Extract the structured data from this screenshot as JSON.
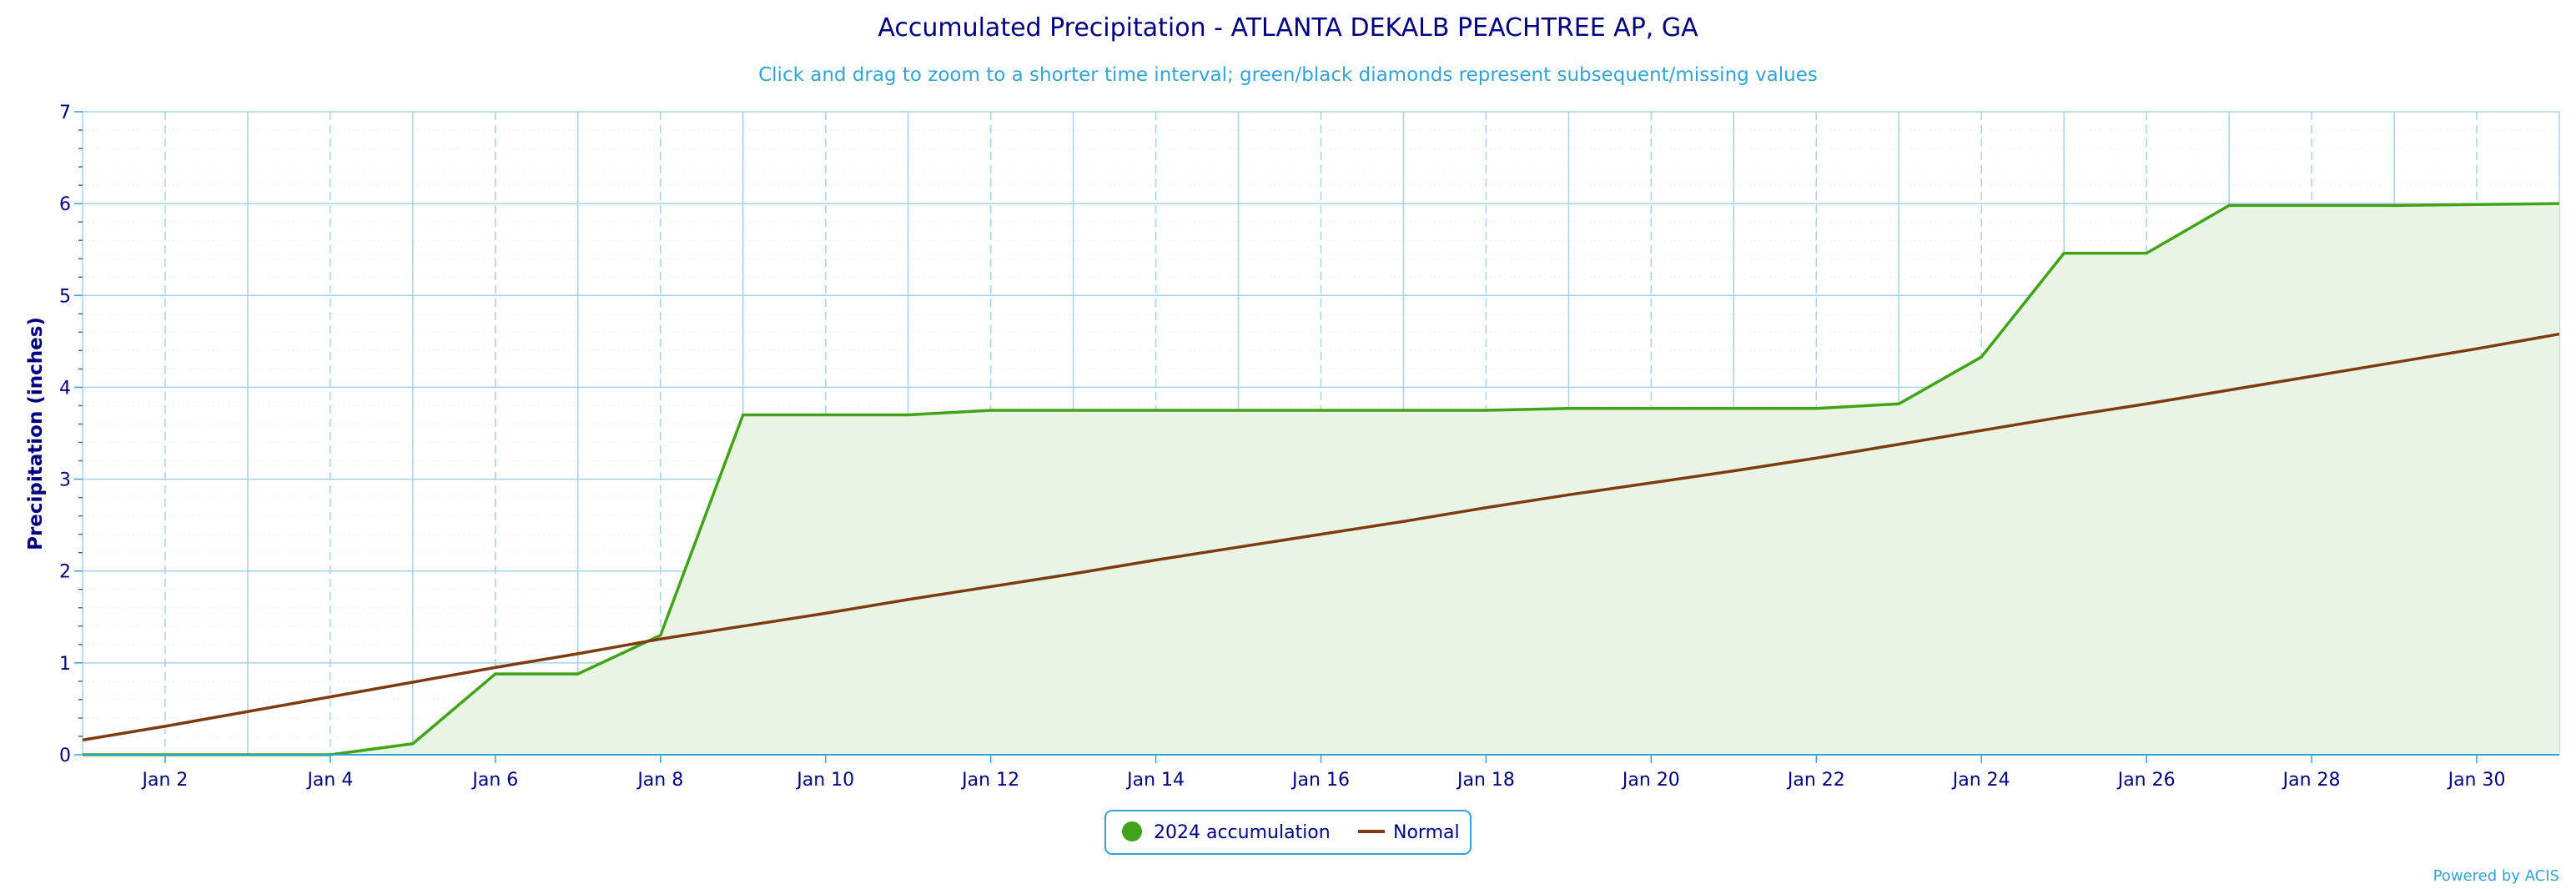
{
  "chart_data": {
    "type": "area",
    "title": "Accumulated Precipitation - ATLANTA DEKALB PEACHTREE AP, GA",
    "subtitle": "Click and drag to zoom to a shorter time interval; green/black diamonds represent subsequent/missing values",
    "ylabel": "Precipitation (inches)",
    "xlabel": "",
    "ylim": [
      0,
      7
    ],
    "y_ticks": [
      0,
      1,
      2,
      3,
      4,
      5,
      6,
      7
    ],
    "xlim": [
      1,
      31
    ],
    "x_ticks": [
      2,
      4,
      6,
      8,
      10,
      12,
      14,
      16,
      18,
      20,
      22,
      24,
      26,
      28,
      30
    ],
    "x_tick_labels": [
      "Jan 2",
      "Jan 4",
      "Jan 6",
      "Jan 8",
      "Jan 10",
      "Jan 12",
      "Jan 14",
      "Jan 16",
      "Jan 18",
      "Jan 20",
      "Jan 22",
      "Jan 24",
      "Jan 26",
      "Jan 28",
      "Jan 30"
    ],
    "grid": true,
    "legend_position": "bottom-center",
    "series": [
      {
        "name": "2024 accumulation",
        "kind": "area",
        "color": "#41a317",
        "fill": "#e9f5e4",
        "x": [
          1,
          2,
          3,
          4,
          5,
          6,
          7,
          8,
          9,
          10,
          11,
          12,
          13,
          14,
          15,
          16,
          17,
          18,
          19,
          20,
          21,
          22,
          23,
          24,
          25,
          26,
          27,
          28,
          29,
          30,
          31
        ],
        "values": [
          0.0,
          0.0,
          0.0,
          0.0,
          0.12,
          0.88,
          0.88,
          1.3,
          3.7,
          3.7,
          3.7,
          3.75,
          3.75,
          3.75,
          3.75,
          3.75,
          3.75,
          3.75,
          3.77,
          3.77,
          3.77,
          3.77,
          3.82,
          4.33,
          5.46,
          5.46,
          5.98,
          5.98,
          5.98,
          5.99,
          6.0
        ]
      },
      {
        "name": "Normal",
        "kind": "line",
        "color": "#7f3a0f",
        "x": [
          1,
          2,
          3,
          4,
          5,
          6,
          7,
          8,
          9,
          10,
          11,
          12,
          13,
          14,
          15,
          16,
          17,
          18,
          19,
          20,
          21,
          22,
          23,
          24,
          25,
          26,
          27,
          28,
          29,
          30,
          31
        ],
        "values": [
          0.16,
          0.31,
          0.47,
          0.63,
          0.79,
          0.95,
          1.1,
          1.26,
          1.4,
          1.54,
          1.69,
          1.83,
          1.97,
          2.12,
          2.26,
          2.4,
          2.54,
          2.69,
          2.83,
          2.96,
          3.09,
          3.23,
          3.38,
          3.53,
          3.68,
          3.82,
          3.97,
          4.12,
          4.27,
          4.42,
          4.58
        ]
      }
    ],
    "credits": "Powered by ACIS"
  },
  "colors": {
    "title": "#000080",
    "subtitle": "#33a3d6",
    "grid": "#a7d1e8",
    "axis": "#33a3d6"
  }
}
